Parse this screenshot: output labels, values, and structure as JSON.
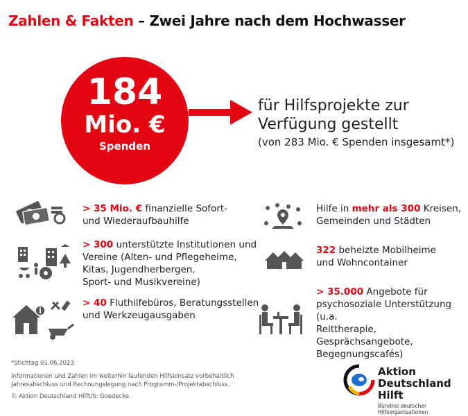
{
  "title": {
    "highlight": "Zahlen & Fakten",
    "rest": "– Zwei Jahre nach dem Hochwasser"
  },
  "circle": {
    "number": "184",
    "unit": "Mio. €",
    "label": "Spenden"
  },
  "headline": {
    "line1": "für Hilfsprojekte zur",
    "line2": "Verfügung gestellt",
    "sub": "(von 283 Mio. € Spenden insgesamt*)"
  },
  "items": {
    "money": {
      "accent": "> 35 Mio. €",
      "text1": " finanzielle Sofort-",
      "text2": "und Wiederaufbauhilfe"
    },
    "institutions": {
      "accent": "> 300",
      "text1": " unterstützte Institutionen und",
      "text2": "Vereine (Alten- und Pflegeheime,",
      "text3": "Kitas, Jugendherbergen,",
      "text4": "Sport- und Musikvereine)"
    },
    "offices": {
      "accent": "> 40",
      "text1": " Fluthilfebüros, Beratungsstellen",
      "text2": "und Werkzeugausgaben"
    },
    "regions": {
      "pre": "Hilfe in ",
      "accent": "mehr als 300",
      "text1": " Kreisen,",
      "text2": "Gemeinden und Städten"
    },
    "homes": {
      "accent": "322",
      "text1": " beheizte Mobilheime",
      "text2": "und Wohncontainer"
    },
    "support": {
      "accent": "> 35.000",
      "text1": " Angebote für",
      "text2": "psychosoziale Unterstützung (u.a.",
      "text3": "Reittherapie, Gesprächsangebote,",
      "text4": "Begegnungscafés)"
    }
  },
  "footer": {
    "stichtag": "*Stichtag 01.06.2023",
    "note1": "Informationen und Zahlen im weiterhin laufenden Hilfseinsatz vorbehaltlich",
    "note2": "Jahresabschluss und Rechnungslegung nach Programm-/Projektabschluss.",
    "copyright": "© Aktion Deutschland Hilft/S. Goedecke"
  },
  "logo": {
    "line1": "Aktion",
    "line2": "Deutschland Hilft",
    "tagline": "Bündnis deutscher Hilfsorganisationen"
  },
  "colors": {
    "accent": "#e30613",
    "icon": "#555555",
    "text": "#222222"
  }
}
